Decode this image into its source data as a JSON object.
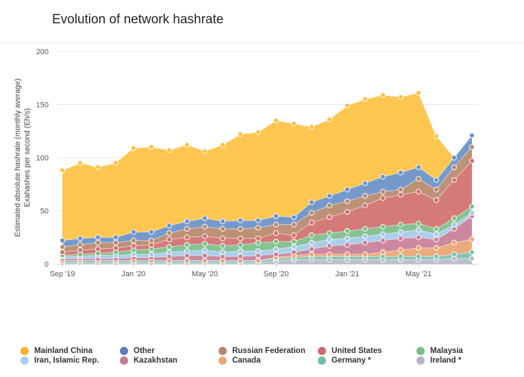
{
  "title": "Evolution of network hashrate",
  "chart_data": {
    "type": "area",
    "stacked": true,
    "ylabel_line1": "Estimated absolute hashrate (monthly average)",
    "ylabel_line2": "Exahashes per second (Eh/s)",
    "ylim": [
      0,
      200
    ],
    "yticks": [
      "0",
      "50",
      "100",
      "150",
      "200"
    ],
    "xticks": [
      {
        "label": "Sep '19",
        "index": 0
      },
      {
        "label": "Jan '20",
        "index": 4
      },
      {
        "label": "May '20",
        "index": 8
      },
      {
        "label": "Sep '20",
        "index": 12
      },
      {
        "label": "Jan '21",
        "index": 16
      },
      {
        "label": "May '21",
        "index": 20
      }
    ],
    "x": [
      "Sep 2019",
      "Oct 2019",
      "Nov 2019",
      "Dec 2019",
      "Jan 2020",
      "Feb 2020",
      "Mar 2020",
      "Apr 2020",
      "May 2020",
      "Jun 2020",
      "Jul 2020",
      "Aug 2020",
      "Sep 2020",
      "Oct 2020",
      "Nov 2020",
      "Dec 2020",
      "Jan 2021",
      "Feb 2021",
      "Mar 2021",
      "Apr 2021",
      "May 2021",
      "Jun 2021",
      "Jul 2021",
      "Aug 2021"
    ],
    "grid": true,
    "legend_position": "bottom",
    "series": [
      {
        "name": "Ireland *",
        "color": "#b8bcc8",
        "cumulative": [
          1,
          1,
          1,
          1,
          1,
          1,
          1,
          1,
          1,
          1,
          1,
          1,
          3,
          4,
          4,
          4,
          4,
          4,
          4,
          4,
          4,
          4,
          5,
          5
        ]
      },
      {
        "name": "Germany *",
        "color": "#7cc2b0",
        "cumulative": [
          3,
          3,
          3,
          3,
          3,
          3,
          3,
          3,
          3,
          3,
          3,
          3,
          5,
          6,
          7,
          7,
          7,
          7,
          7,
          7,
          7,
          7,
          9,
          11
        ]
      },
      {
        "name": "Canada",
        "color": "#e9a777",
        "cumulative": [
          3,
          3,
          3,
          3,
          3,
          3,
          3,
          3,
          3,
          3,
          3,
          3,
          6,
          8,
          9,
          9,
          9,
          9,
          11,
          13,
          15,
          15,
          20,
          23
        ]
      },
      {
        "name": "Kazakhstan",
        "color": "#c98299",
        "cumulative": [
          5,
          5,
          5,
          5,
          6,
          6,
          7,
          8,
          8,
          7,
          7,
          8,
          9,
          11,
          14,
          17,
          18,
          20,
          22,
          24,
          25,
          23,
          33,
          45
        ]
      },
      {
        "name": "Iran, Islamic Rep.",
        "color": "#a5cbe8",
        "cumulative": [
          7,
          7,
          8,
          8,
          9,
          9,
          11,
          12,
          13,
          11,
          12,
          12,
          14,
          16,
          20,
          23,
          24,
          26,
          28,
          30,
          32,
          28,
          37,
          48
        ]
      },
      {
        "name": "Malaysia",
        "color": "#7fbf8c",
        "cumulative": [
          8,
          9,
          10,
          11,
          13,
          14,
          16,
          18,
          19,
          17,
          18,
          20,
          21,
          21,
          27,
          29,
          31,
          33,
          35,
          37,
          38,
          33,
          43,
          54
        ]
      },
      {
        "name": "United States",
        "color": "#d27370",
        "cumulative": [
          11,
          13,
          14,
          15,
          17,
          18,
          23,
          25,
          26,
          24,
          24,
          24,
          29,
          27,
          39,
          44,
          49,
          55,
          62,
          65,
          68,
          60,
          79,
          97
        ]
      },
      {
        "name": "Russian Federation",
        "color": "#b88b6e",
        "cumulative": [
          16,
          18,
          20,
          20,
          22,
          22,
          29,
          33,
          35,
          33,
          33,
          34,
          37,
          37,
          48,
          55,
          59,
          64,
          68,
          70,
          80,
          70,
          91,
          110
        ]
      },
      {
        "name": "Other",
        "color": "#6e93c8",
        "cumulative": [
          22,
          24,
          25,
          25,
          30,
          30,
          36,
          40,
          43,
          40,
          41,
          41,
          45,
          44,
          58,
          64,
          70,
          76,
          82,
          86,
          91,
          79,
          100,
          121
        ]
      },
      {
        "name": "Mainland China",
        "color": "#fdc347",
        "cumulative": [
          88,
          95,
          91,
          95,
          109,
          110,
          107,
          112,
          106,
          112,
          122,
          124,
          135,
          132,
          129,
          136,
          149,
          155,
          159,
          157,
          161,
          120,
          null,
          null
        ]
      }
    ]
  },
  "legend": [
    {
      "label": "Mainland China",
      "color": "#f7b12b"
    },
    {
      "label": "Other",
      "color": "#5b7fbf"
    },
    {
      "label": "Russian Federation",
      "color": "#b4866a"
    },
    {
      "label": "United States",
      "color": "#d06d6a"
    },
    {
      "label": "Malaysia",
      "color": "#7abd8a"
    },
    {
      "label": "Iran, Islamic Rep.",
      "color": "#a9cdee"
    },
    {
      "label": "Kazakhstan",
      "color": "#c17b93"
    },
    {
      "label": "Canada",
      "color": "#e9a777"
    },
    {
      "label": "Germany *",
      "color": "#6fbeab"
    },
    {
      "label": "Ireland *",
      "color": "#b1b5c4"
    }
  ]
}
